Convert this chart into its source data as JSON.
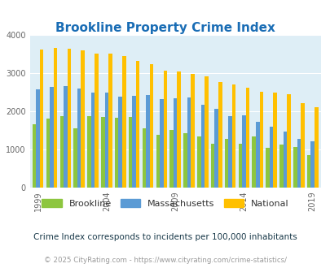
{
  "title": "Brookline Property Crime Index",
  "title_color": "#1a6db5",
  "years": [
    1999,
    2000,
    2001,
    2002,
    2003,
    2004,
    2005,
    2006,
    2007,
    2008,
    2009,
    2010,
    2011,
    2012,
    2013,
    2014,
    2015,
    2016,
    2017,
    2018,
    2019,
    2020
  ],
  "brookline": [
    1650,
    1800,
    1880,
    1560,
    1870,
    1850,
    1820,
    1840,
    1560,
    1380,
    1500,
    1420,
    1340,
    1150,
    1280,
    1140,
    1350,
    1040,
    1120,
    1070,
    850,
    0
  ],
  "massachusetts": [
    2580,
    2630,
    2660,
    2590,
    2490,
    2490,
    2380,
    2410,
    2420,
    2320,
    2340,
    2360,
    2170,
    2070,
    1870,
    1890,
    1720,
    1590,
    1460,
    1270,
    1210,
    0
  ],
  "national": [
    3620,
    3660,
    3640,
    3600,
    3510,
    3510,
    3440,
    3320,
    3240,
    3060,
    3040,
    2970,
    2910,
    2770,
    2710,
    2620,
    2510,
    2490,
    2450,
    2210,
    2110,
    0
  ],
  "brookline_color": "#8dc63f",
  "massachusetts_color": "#5b9bd5",
  "national_color": "#ffc000",
  "plot_bg_color": "#deeef6",
  "fig_bg_color": "#ffffff",
  "ylim": [
    0,
    4000
  ],
  "yticks": [
    0,
    1000,
    2000,
    3000,
    4000
  ],
  "tick_years": [
    1999,
    2004,
    2009,
    2014,
    2019
  ],
  "subtitle": "Crime Index corresponds to incidents per 100,000 inhabitants",
  "footer": "© 2025 CityRating.com - https://www.cityrating.com/crime-statistics/",
  "subtitle_color": "#1a3a4a",
  "footer_color": "#999999",
  "legend_label_color": "#333333"
}
